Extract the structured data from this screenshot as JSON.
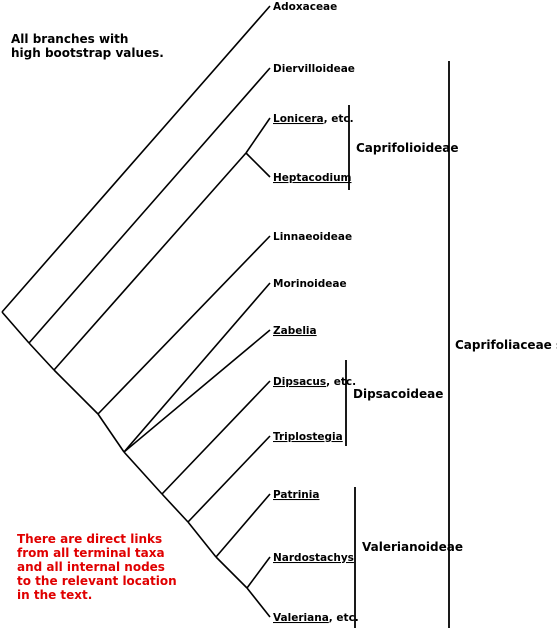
{
  "notes": {
    "bootstrap": [
      "All branches with",
      "high bootstrap values."
    ],
    "links": [
      "There are direct links",
      "from all terminal taxa",
      "and all internal nodes",
      "to the relevant location",
      "in the text."
    ],
    "links_color": "#e00000"
  },
  "taxa": [
    {
      "id": "adoxaceae",
      "label": "Adoxaceae",
      "suffix": "",
      "linked": false
    },
    {
      "id": "diervilloideae",
      "label": "Diervilloideae",
      "suffix": "",
      "linked": false
    },
    {
      "id": "lonicera",
      "label": "Lonicera",
      "suffix": ", etc.",
      "linked": true
    },
    {
      "id": "heptacodium",
      "label": "Heptacodium",
      "suffix": "",
      "linked": true
    },
    {
      "id": "linnaeoideae",
      "label": "Linnaeoideae",
      "suffix": "",
      "linked": false
    },
    {
      "id": "morinoideae",
      "label": "Morinoideae",
      "suffix": "",
      "linked": false
    },
    {
      "id": "zabelia",
      "label": "Zabelia",
      "suffix": "",
      "linked": true
    },
    {
      "id": "dipsacus",
      "label": "Dipsacus",
      "suffix": ", etc.",
      "linked": true
    },
    {
      "id": "triplostegia",
      "label": "Triplostegia",
      "suffix": "",
      "linked": true
    },
    {
      "id": "patrinia",
      "label": "Patrinia",
      "suffix": "",
      "linked": true
    },
    {
      "id": "nardostachys",
      "label": "Nardostachys",
      "suffix": "",
      "linked": true
    },
    {
      "id": "valeriana",
      "label": "Valeriana",
      "suffix": ", etc.",
      "linked": true
    }
  ],
  "groups": [
    {
      "id": "caprifolioideae",
      "label": "Caprifolioideae",
      "members": [
        "lonicera",
        "heptacodium"
      ]
    },
    {
      "id": "dipsacoideae",
      "label": "Dipsacoideae",
      "members": [
        "dipsacus",
        "triplostegia"
      ]
    },
    {
      "id": "valerianoideae",
      "label": "Valerianoideae",
      "members": [
        "patrinia",
        "valeriana"
      ]
    },
    {
      "id": "caprifoliaceae",
      "label": "Caprifoliaceae s.l.",
      "members": [
        "diervilloideae",
        "valeriana"
      ]
    }
  ]
}
